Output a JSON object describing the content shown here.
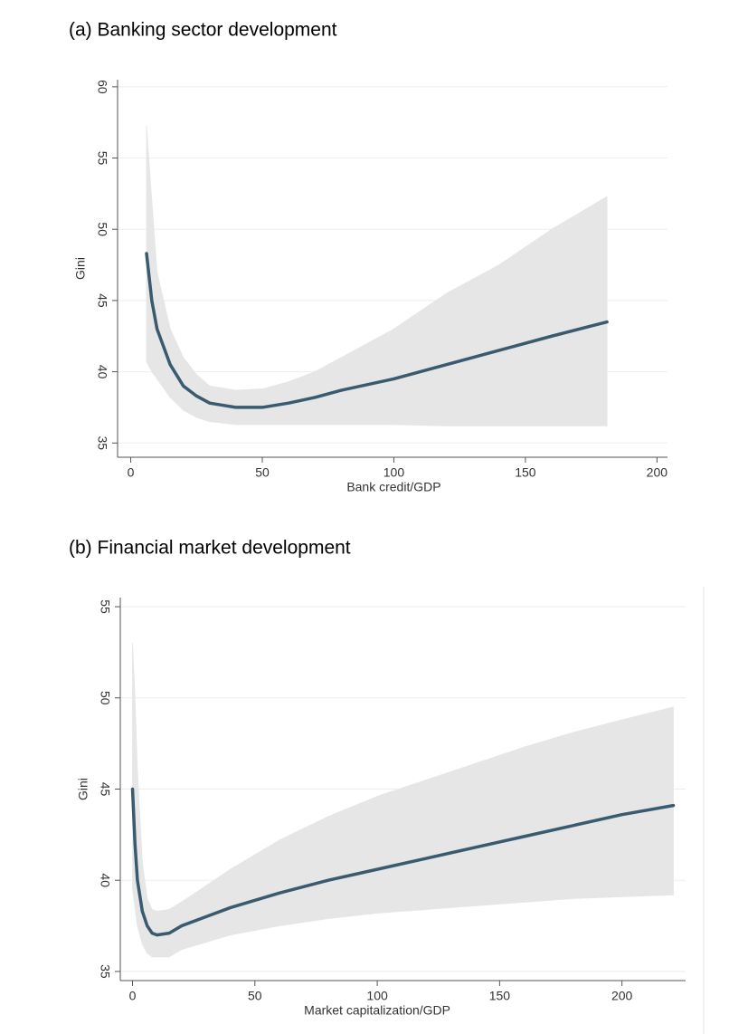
{
  "chart_data": [
    {
      "type": "line",
      "title": "(a) Banking sector development",
      "x_label": "Bank credit/GDP",
      "y_label": "Gini",
      "xlim": [
        -5,
        204
      ],
      "ylim": [
        34,
        60.5
      ],
      "xticks": [
        0,
        50,
        100,
        150,
        200
      ],
      "yticks": [
        35,
        40,
        45,
        50,
        55,
        60
      ],
      "grid": true,
      "x": [
        6,
        8,
        10,
        15,
        20,
        25,
        30,
        40,
        50,
        60,
        70,
        80,
        100,
        120,
        140,
        160,
        181
      ],
      "series": [
        {
          "color": "#3a5a70",
          "band_color": "#e6e6e6",
          "values": [
            48.3,
            45,
            43,
            40.5,
            39,
            38.3,
            37.8,
            37.5,
            37.5,
            37.8,
            38.2,
            38.7,
            39.5,
            40.5,
            41.5,
            42.5,
            43.5
          ],
          "upper": [
            57.3,
            52,
            47,
            43,
            41,
            39.8,
            39,
            38.7,
            38.8,
            39.3,
            40,
            41,
            43,
            45.5,
            47.5,
            50,
            52.3
          ],
          "lower": [
            40.7,
            40,
            39.5,
            38.2,
            37.3,
            36.8,
            36.5,
            36.3,
            36.3,
            36.3,
            36.3,
            36.3,
            36.3,
            36.2,
            36.2,
            36.2,
            36.2
          ]
        }
      ]
    },
    {
      "type": "line",
      "title": "(b)  Financial market development",
      "x_label": "Market capitalization/GDP",
      "y_label": "Gini",
      "xlim": [
        -5,
        226
      ],
      "ylim": [
        34.5,
        55.5
      ],
      "xticks": [
        0,
        50,
        100,
        150,
        200
      ],
      "yticks": [
        35,
        40,
        45,
        50,
        55
      ],
      "grid": true,
      "x": [
        0,
        1,
        2,
        4,
        6,
        8,
        10,
        15,
        20,
        30,
        40,
        60,
        80,
        100,
        120,
        140,
        160,
        180,
        200,
        221
      ],
      "series": [
        {
          "color": "#3a5a70",
          "band_color": "#e6e6e6",
          "values": [
            45,
            42,
            40,
            38.3,
            37.5,
            37.1,
            37,
            37.1,
            37.5,
            38,
            38.5,
            39.3,
            40,
            40.6,
            41.2,
            41.8,
            42.4,
            43,
            43.6,
            44.1
          ],
          "upper": [
            53,
            50,
            46,
            41,
            39,
            38.4,
            38.3,
            38.4,
            38.8,
            39.7,
            40.6,
            42.2,
            43.5,
            44.6,
            45.5,
            46.4,
            47.3,
            48.1,
            48.8,
            49.5
          ],
          "lower": [
            39.5,
            38.5,
            37.5,
            36.5,
            36,
            35.8,
            35.8,
            35.8,
            36.2,
            36.6,
            37,
            37.5,
            37.9,
            38.2,
            38.4,
            38.6,
            38.8,
            39,
            39.1,
            39.2
          ]
        }
      ]
    }
  ]
}
